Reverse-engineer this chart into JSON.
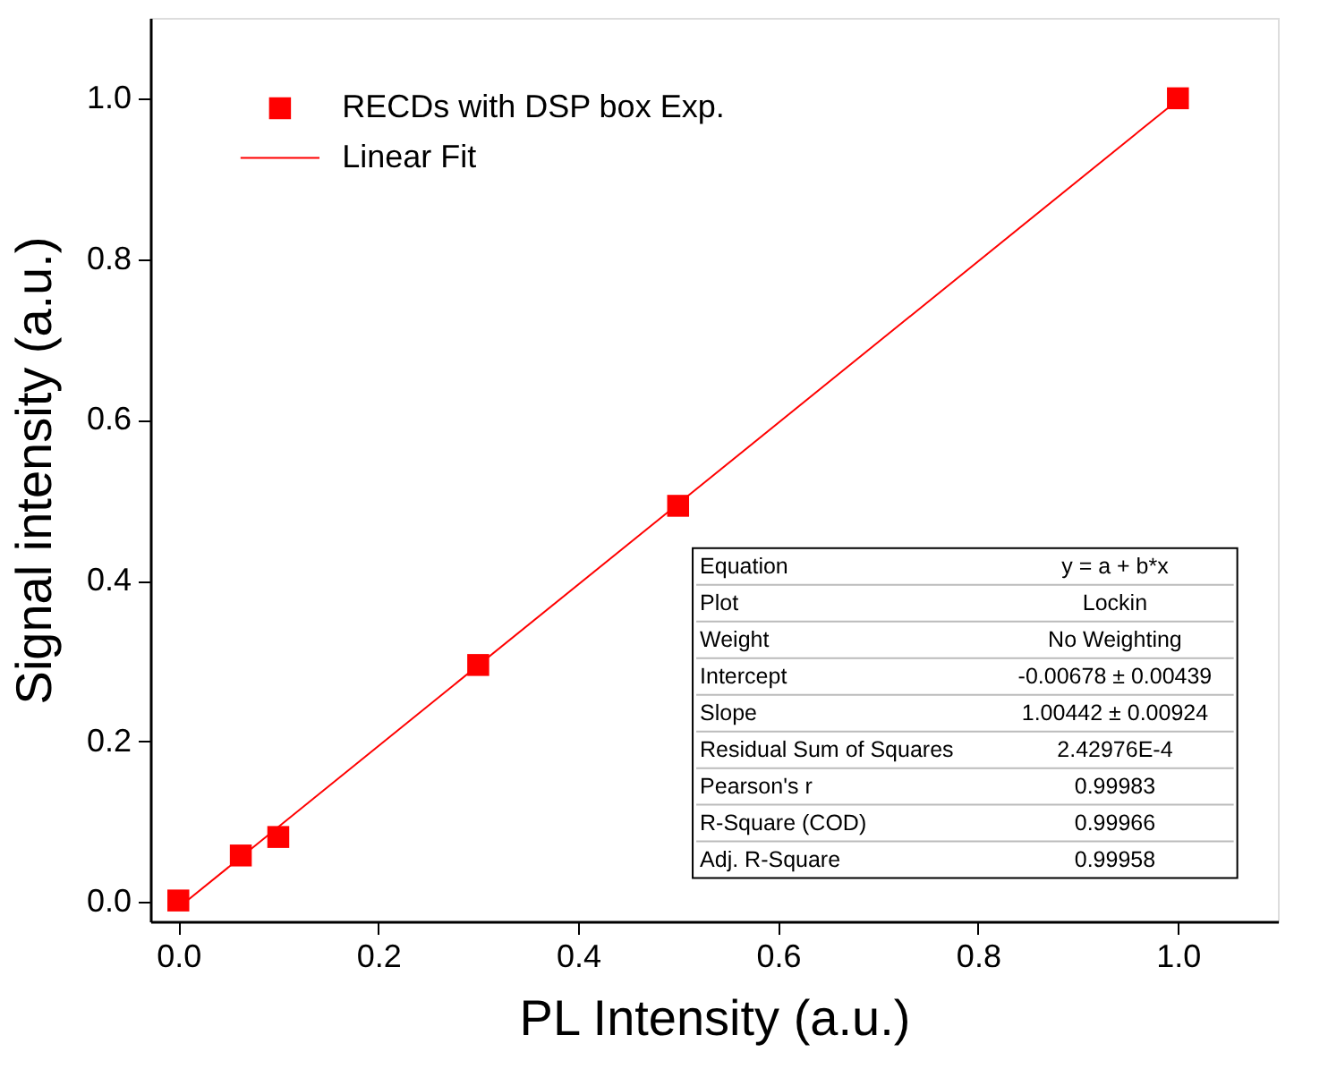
{
  "chart_data": {
    "type": "scatter",
    "xlabel": "PL Intensity (a.u.)",
    "ylabel": "Signal intensity (a.u.)",
    "xlim": [
      -0.028,
      1.1
    ],
    "ylim": [
      -0.024,
      1.1
    ],
    "xticks": [
      {
        "value": 0,
        "label": "0.0"
      },
      {
        "value": 0.2,
        "label": "0.2"
      },
      {
        "value": 0.4,
        "label": "0.4"
      },
      {
        "value": 0.6,
        "label": "0.6"
      },
      {
        "value": 0.8,
        "label": "0.8"
      },
      {
        "value": 1,
        "label": "1.0"
      }
    ],
    "yticks": [
      {
        "value": 0,
        "label": "0.0"
      },
      {
        "value": 0.2,
        "label": "0.2"
      },
      {
        "value": 0.4,
        "label": "0.4"
      },
      {
        "value": 0.6,
        "label": "0.6"
      },
      {
        "value": 0.8,
        "label": "0.8"
      },
      {
        "value": 1,
        "label": "1.0"
      }
    ],
    "grid": false,
    "legend": "top left",
    "series": [
      {
        "name": "RECDs with DSP box Exp.",
        "marker": "square",
        "color": "#ff0000",
        "x": [
          0,
          0.0625,
          0.1,
          0.3,
          0.5,
          1.0
        ],
        "values": [
          0.002,
          0.058,
          0.081,
          0.295,
          0.493,
          1.0
        ]
      },
      {
        "name": "Linear Fit",
        "type": "line",
        "line_style": "solid",
        "color": "#ff0000",
        "x": [
          0,
          1.0
        ],
        "values": [
          -0.007,
          0.998
        ]
      }
    ],
    "annotations": [
      "Equation",
      "y = a + b*x",
      "Plot",
      "Lockin",
      "Weight",
      "No Weighting",
      "Intercept",
      "-0.00678 ± 0.00439",
      "Slope",
      "1.00442 ± 0.00924",
      "Residual Sum of Squares",
      "2.42976E-4",
      "Pearson's r",
      "0.99983",
      "R-Square (COD)",
      "0.99966",
      "Adj. R-Square",
      "0.99958"
    ]
  }
}
